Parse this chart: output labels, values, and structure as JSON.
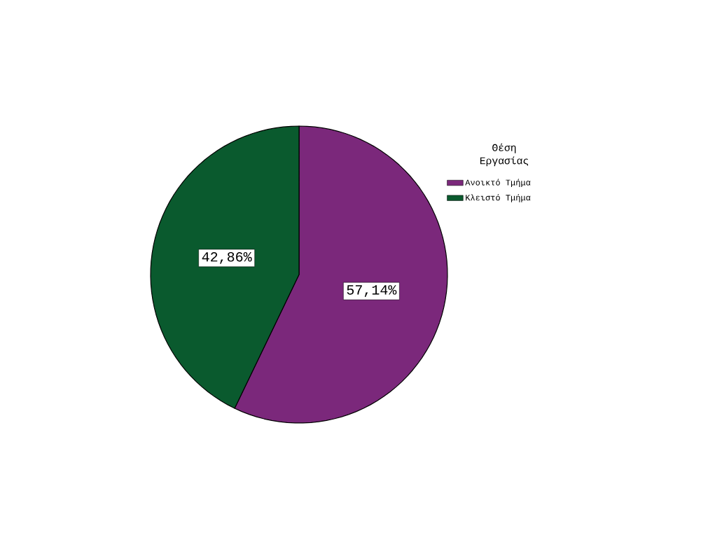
{
  "chart_data": {
    "type": "pie",
    "legend_title": "Θέση Εργασίας",
    "categories": [
      "Ανοικτό Τμήμα",
      "Κλειστό Τμήμα"
    ],
    "values": [
      57.14,
      42.86
    ],
    "colors": [
      "#7b287b",
      "#0a5a2e"
    ],
    "value_labels": [
      "57,14%",
      "42,86%"
    ],
    "legend": "right"
  }
}
